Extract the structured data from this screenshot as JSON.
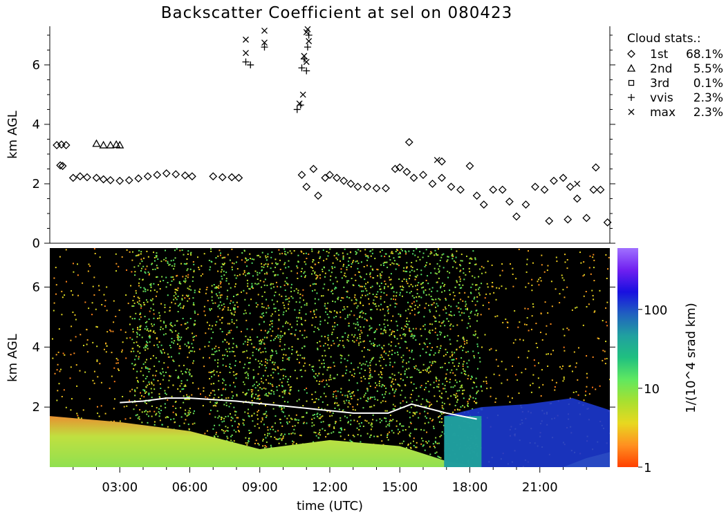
{
  "figure": {
    "title": "Backscatter Coefficient at sel on 080423"
  },
  "legend": {
    "heading": "Cloud stats.:",
    "entries": [
      {
        "symbol": "diamond",
        "label": "1st",
        "value": "68.1%"
      },
      {
        "symbol": "triangle",
        "label": "2nd",
        "value": "5.5%"
      },
      {
        "symbol": "square",
        "label": "3rd",
        "value": "0.1%"
      },
      {
        "symbol": "plus",
        "label": "vvis",
        "value": "2.3%"
      },
      {
        "symbol": "cross",
        "label": "max",
        "value": "2.3%"
      }
    ]
  },
  "colorbar": {
    "label": "1/(10^4 srad km)",
    "ticks": [
      "1",
      "10",
      "100"
    ],
    "scale": "log",
    "range": [
      1,
      600
    ],
    "stops": [
      "#ff4000",
      "#ff9020",
      "#e8d820",
      "#a8e030",
      "#60e860",
      "#20c080",
      "#20a0a0",
      "#2060c0",
      "#1810e0",
      "#7020f0",
      "#a070ff"
    ]
  },
  "colors": {
    "background": "#ffffff",
    "plot_background": "#000000",
    "markers": "#000000"
  },
  "chart_data": [
    {
      "type": "scatter",
      "name": "cloud-base-heights",
      "ylabel": "km AGL",
      "ylim": [
        0,
        7.3
      ],
      "xlim": [
        0,
        24
      ],
      "yticks": [
        0,
        2,
        4,
        6
      ],
      "series": [
        {
          "symbol": "diamond",
          "points": [
            [
              0.3,
              3.3
            ],
            [
              0.5,
              3.32
            ],
            [
              0.7,
              3.3
            ],
            [
              0.45,
              2.62
            ],
            [
              0.55,
              2.6
            ],
            [
              1.0,
              2.2
            ],
            [
              1.3,
              2.25
            ],
            [
              1.6,
              2.22
            ],
            [
              2.0,
              2.2
            ],
            [
              2.3,
              2.15
            ],
            [
              2.6,
              2.12
            ],
            [
              3.0,
              2.1
            ],
            [
              3.4,
              2.12
            ],
            [
              3.8,
              2.18
            ],
            [
              4.2,
              2.25
            ],
            [
              4.6,
              2.3
            ],
            [
              5.0,
              2.35
            ],
            [
              5.4,
              2.32
            ],
            [
              5.8,
              2.28
            ],
            [
              6.1,
              2.25
            ],
            [
              7.0,
              2.25
            ],
            [
              7.4,
              2.22
            ],
            [
              7.8,
              2.22
            ],
            [
              8.1,
              2.2
            ],
            [
              10.8,
              2.3
            ],
            [
              11.0,
              1.9
            ],
            [
              11.3,
              2.5
            ],
            [
              11.5,
              1.6
            ],
            [
              11.8,
              2.2
            ],
            [
              12.0,
              2.3
            ],
            [
              12.3,
              2.2
            ],
            [
              12.6,
              2.1
            ],
            [
              12.9,
              2.0
            ],
            [
              13.2,
              1.9
            ],
            [
              13.6,
              1.9
            ],
            [
              14.0,
              1.85
            ],
            [
              14.4,
              1.85
            ],
            [
              14.8,
              2.5
            ],
            [
              15.0,
              2.55
            ],
            [
              15.3,
              2.4
            ],
            [
              15.6,
              2.2
            ],
            [
              16.0,
              2.3
            ],
            [
              16.4,
              2.0
            ],
            [
              16.8,
              2.2
            ],
            [
              17.2,
              1.9
            ],
            [
              17.6,
              1.8
            ],
            [
              18.0,
              2.6
            ],
            [
              18.3,
              1.6
            ],
            [
              18.6,
              1.3
            ],
            [
              19.0,
              1.8
            ],
            [
              19.4,
              1.8
            ],
            [
              19.7,
              1.4
            ],
            [
              20.0,
              0.9
            ],
            [
              20.4,
              1.3
            ],
            [
              20.8,
              1.9
            ],
            [
              21.2,
              1.8
            ],
            [
              21.6,
              2.1
            ],
            [
              22.0,
              2.2
            ],
            [
              22.3,
              1.9
            ],
            [
              22.6,
              1.5
            ],
            [
              23.0,
              0.85
            ],
            [
              23.3,
              1.8
            ],
            [
              23.6,
              1.8
            ],
            [
              23.9,
              0.7
            ],
            [
              21.4,
              0.75
            ],
            [
              22.2,
              0.8
            ],
            [
              15.4,
              3.4
            ],
            [
              16.8,
              2.75
            ],
            [
              23.4,
              2.55
            ]
          ]
        },
        {
          "symbol": "triangle",
          "points": [
            [
              2.0,
              3.35
            ],
            [
              2.3,
              3.3
            ],
            [
              2.6,
              3.3
            ],
            [
              2.85,
              3.32
            ],
            [
              3.0,
              3.3
            ]
          ]
        },
        {
          "symbol": "plus",
          "points": [
            [
              8.4,
              6.1
            ],
            [
              8.6,
              6.0
            ],
            [
              9.2,
              6.6
            ],
            [
              10.6,
              4.5
            ],
            [
              10.8,
              5.9
            ],
            [
              10.9,
              6.2
            ],
            [
              11.0,
              5.8
            ],
            [
              11.05,
              6.6
            ],
            [
              11.1,
              7.0
            ],
            [
              10.75,
              4.65
            ]
          ]
        },
        {
          "symbol": "cross",
          "points": [
            [
              8.4,
              6.85
            ],
            [
              8.4,
              6.4
            ],
            [
              9.2,
              7.15
            ],
            [
              9.2,
              6.75
            ],
            [
              10.7,
              4.7
            ],
            [
              10.85,
              5.0
            ],
            [
              10.9,
              6.3
            ],
            [
              11.0,
              6.1
            ],
            [
              11.05,
              7.2
            ],
            [
              11.1,
              6.8
            ],
            [
              11.0,
              7.1
            ],
            [
              16.6,
              2.8
            ],
            [
              22.6,
              2.0
            ]
          ]
        }
      ]
    },
    {
      "type": "heatmap",
      "name": "backscatter-coefficient",
      "xlabel": "time (UTC)",
      "ylabel": "km AGL",
      "ylim": [
        0,
        7.3
      ],
      "xlim": [
        0,
        24
      ],
      "xticks": [
        "03:00",
        "06:00",
        "09:00",
        "12:00",
        "15:00",
        "18:00",
        "21:00"
      ],
      "xtick_values": [
        3,
        6,
        9,
        12,
        15,
        18,
        21
      ],
      "yticks": [
        2,
        4,
        6
      ],
      "value_unit": "1/(10^4 srad km)",
      "layers": [
        {
          "kind": "surface",
          "time": [
            0,
            3,
            6,
            9,
            12,
            15,
            17,
            18.5,
            20,
            21,
            22,
            23,
            24
          ],
          "top_km": [
            1.7,
            1.5,
            1.2,
            0.6,
            0.9,
            0.7,
            0.2,
            0,
            0,
            0,
            0,
            0.3,
            0.5
          ],
          "value": 12
        },
        {
          "kind": "cloud",
          "time": [
            16.9,
            18.5,
            20.5,
            22.4,
            24
          ],
          "base_km": [
            0,
            0,
            0,
            0,
            0
          ],
          "top_km": [
            1.7,
            2.0,
            2.1,
            2.3,
            1.9
          ],
          "value": 120
        },
        {
          "kind": "cloud-base-line",
          "time": [
            3,
            4,
            5,
            6,
            8,
            13,
            14.5,
            15.5,
            17,
            18.3
          ],
          "height_km": [
            2.15,
            2.2,
            2.3,
            2.3,
            2.2,
            1.8,
            1.8,
            2.1,
            1.8,
            1.6
          ],
          "value": 250
        },
        {
          "kind": "scatter-band",
          "time_ranges": [
            [
              3.5,
              6.2
            ],
            [
              6.8,
              8.0
            ],
            [
              8.2,
              11.0
            ],
            [
              11.2,
              18.5
            ]
          ],
          "top_km": 7.3,
          "value": 8
        }
      ]
    }
  ]
}
